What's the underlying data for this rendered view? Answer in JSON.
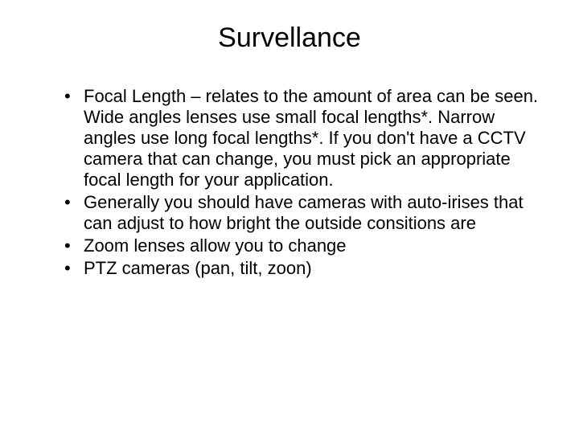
{
  "slide": {
    "title": "Survellance",
    "bullets": [
      "Focal Length – relates to the amount of area can be seen. Wide angles lenses use small focal lengths*. Narrow angles use long focal lengths*. If you don't have a CCTV camera that can change, you must pick an appropriate focal length for your application.",
      "Generally you should have cameras with auto-irises that can adjust to how bright the outside consitions are",
      "Zoom lenses allow you to change",
      "PTZ cameras (pan, tilt, zoon)"
    ],
    "styling": {
      "background_color": "#ffffff",
      "text_color": "#000000",
      "title_fontsize": 34,
      "body_fontsize": 22,
      "font_family": "Arial"
    }
  }
}
